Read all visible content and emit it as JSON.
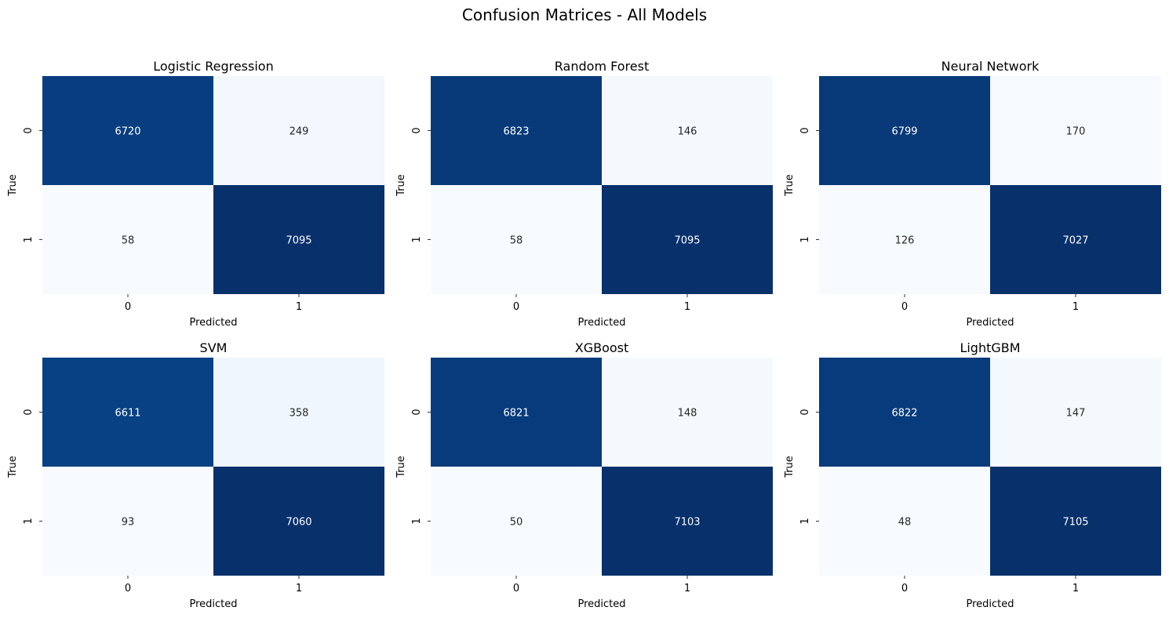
{
  "figure": {
    "suptitle": "Confusion Matrices - All Models"
  },
  "chart_data": [
    {
      "type": "heatmap",
      "title": "Logistic Regression",
      "xlabel": "Predicted",
      "ylabel": "True",
      "x_ticks": [
        "0",
        "1"
      ],
      "y_ticks": [
        "0",
        "1"
      ],
      "values": [
        [
          6720,
          249
        ],
        [
          58,
          7095
        ]
      ],
      "colormap": "Blues",
      "colorbar": false
    },
    {
      "type": "heatmap",
      "title": "Random Forest",
      "xlabel": "Predicted",
      "ylabel": "True",
      "x_ticks": [
        "0",
        "1"
      ],
      "y_ticks": [
        "0",
        "1"
      ],
      "values": [
        [
          6823,
          146
        ],
        [
          58,
          7095
        ]
      ],
      "colormap": "Blues",
      "colorbar": false
    },
    {
      "type": "heatmap",
      "title": "Neural Network",
      "xlabel": "Predicted",
      "ylabel": "True",
      "x_ticks": [
        "0",
        "1"
      ],
      "y_ticks": [
        "0",
        "1"
      ],
      "values": [
        [
          6799,
          170
        ],
        [
          126,
          7027
        ]
      ],
      "colormap": "Blues",
      "colorbar": false
    },
    {
      "type": "heatmap",
      "title": "SVM",
      "xlabel": "Predicted",
      "ylabel": "True",
      "x_ticks": [
        "0",
        "1"
      ],
      "y_ticks": [
        "0",
        "1"
      ],
      "values": [
        [
          6611,
          358
        ],
        [
          93,
          7060
        ]
      ],
      "colormap": "Blues",
      "colorbar": false
    },
    {
      "type": "heatmap",
      "title": "XGBoost",
      "xlabel": "Predicted",
      "ylabel": "True",
      "x_ticks": [
        "0",
        "1"
      ],
      "y_ticks": [
        "0",
        "1"
      ],
      "values": [
        [
          6821,
          148
        ],
        [
          50,
          7103
        ]
      ],
      "colormap": "Blues",
      "colorbar": false
    },
    {
      "type": "heatmap",
      "title": "LightGBM",
      "xlabel": "Predicted",
      "ylabel": "True",
      "x_ticks": [
        "0",
        "1"
      ],
      "y_ticks": [
        "0",
        "1"
      ],
      "values": [
        [
          6822,
          147
        ],
        [
          48,
          7105
        ]
      ],
      "colormap": "Blues",
      "colorbar": false
    }
  ],
  "colors": {
    "blues_low": "#f7fbff",
    "blues_mid_low": "#c6dbef",
    "blues_mid": "#6baed6",
    "blues_mid_high": "#2171b5",
    "blues_high": "#08306b",
    "text_dark": "#262626",
    "text_light": "#ffffff"
  }
}
